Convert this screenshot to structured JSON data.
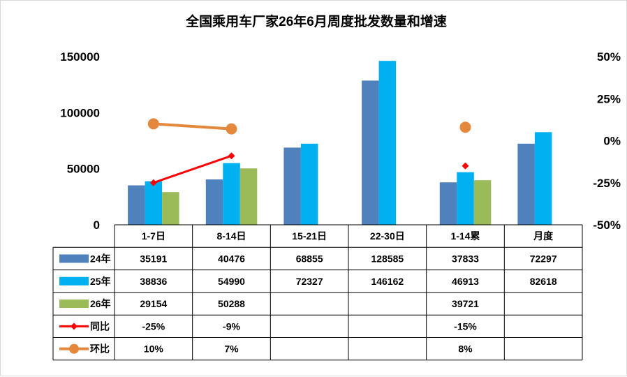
{
  "chart_data": {
    "type": "bar",
    "title": "全国乘用车厂家26年6月周度批发数量和增速",
    "categories": [
      "1-7日",
      "8-14日",
      "15-21日",
      "22-30日",
      "1-14累",
      "月度"
    ],
    "y_left": {
      "min": 0,
      "max": 150000,
      "ticks": [
        "0",
        "50000",
        "100000",
        "150000"
      ],
      "tick_values": [
        0,
        50000,
        100000,
        150000
      ]
    },
    "y_right": {
      "min": -50,
      "max": 50,
      "ticks": [
        "-50%",
        "-25%",
        "0%",
        "25%",
        "50%"
      ],
      "tick_values": [
        -50,
        -25,
        0,
        25,
        50
      ]
    },
    "series": [
      {
        "name": "24年",
        "kind": "bar",
        "color": "#4f81bd",
        "values": [
          35191,
          40476,
          68855,
          128585,
          37833,
          72297
        ],
        "labels": [
          "35191",
          "40476",
          "68855",
          "128585",
          "37833",
          "72297"
        ]
      },
      {
        "name": "25年",
        "kind": "bar",
        "color": "#00b0f0",
        "values": [
          38836,
          54990,
          72327,
          146162,
          46913,
          82618
        ],
        "labels": [
          "38836",
          "54990",
          "72327",
          "146162",
          "46913",
          "82618"
        ]
      },
      {
        "name": "26年",
        "kind": "bar",
        "color": "#9bbb59",
        "values": [
          29154,
          50288,
          null,
          null,
          39721,
          null
        ],
        "labels": [
          "29154",
          "50288",
          "",
          "",
          "39721",
          ""
        ]
      },
      {
        "name": "同比",
        "kind": "line",
        "axis": "right",
        "color": "#ff0000",
        "marker": "diamond",
        "values": [
          -25,
          -9,
          null,
          null,
          -15,
          null
        ],
        "labels": [
          "-25%",
          "-9%",
          "",
          "",
          "-15%",
          ""
        ]
      },
      {
        "name": "环比",
        "kind": "line",
        "axis": "right",
        "color": "#e3883c",
        "marker": "circle",
        "values": [
          10,
          7,
          null,
          null,
          8,
          null
        ],
        "labels": [
          "10%",
          "7%",
          "",
          "",
          "8%",
          ""
        ]
      }
    ]
  }
}
